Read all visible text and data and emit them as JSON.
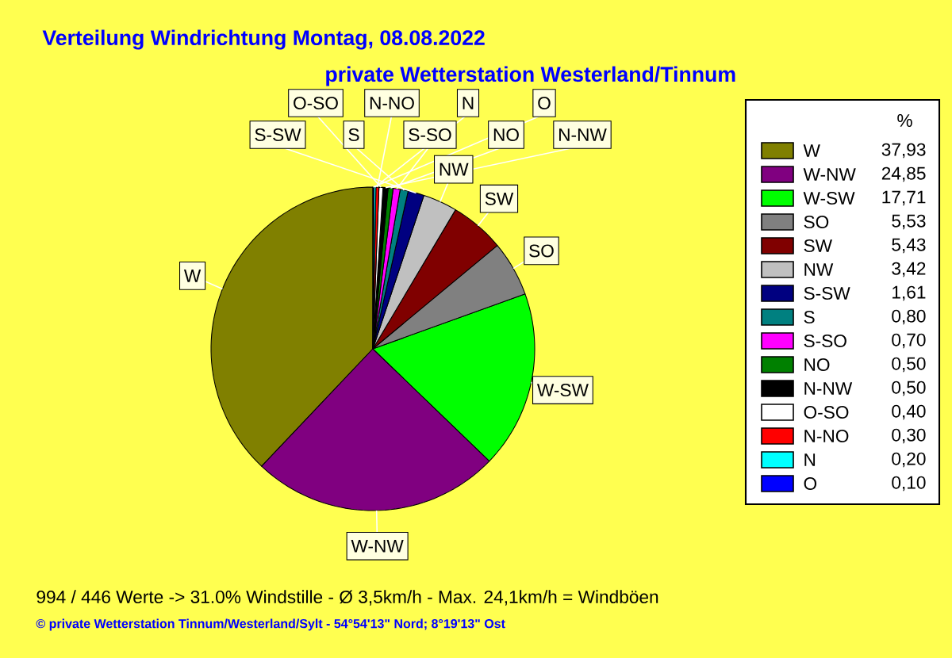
{
  "chart_data": {
    "type": "pie",
    "title": "Verteilung Windrichtung   Montag, 08.08.2022",
    "subtitle": "private Wetterstation Westerland/Tinnum",
    "categories": [
      "W",
      "W-NW",
      "W-SW",
      "SO",
      "SW",
      "NW",
      "S-SW",
      "S",
      "S-SO",
      "NO",
      "N-NW",
      "O-SO",
      "N-NO",
      "N",
      "O"
    ],
    "values": [
      37.93,
      24.85,
      17.71,
      5.53,
      5.43,
      3.42,
      1.61,
      0.8,
      0.7,
      0.5,
      0.5,
      0.4,
      0.3,
      0.2,
      0.1
    ],
    "value_labels": [
      "37,93",
      "24,85",
      "17,71",
      "5,53",
      "5,43",
      "3,42",
      "1,61",
      "0,80",
      "0,70",
      "0,50",
      "0,50",
      "0,40",
      "0,30",
      "0,20",
      "0,10"
    ],
    "colors": [
      "#808000",
      "#800080",
      "#00ff00",
      "#808080",
      "#800000",
      "#c0c0c0",
      "#000080",
      "#008080",
      "#ff00ff",
      "#008000",
      "#000000",
      "#ffffff",
      "#ff0000",
      "#00ffff",
      "#0000ff"
    ],
    "legend": "right",
    "legend_title": "%",
    "annotations": [
      "994 / 446 Werte  -> 31.0% Windstille   -   Ø 3,5km/h  -  Max. 24,1km/h = Windböen",
      "© private Wetterstation Tinnum/Westerland/Sylt  -  54°54'13\" Nord; 8°19'13\" Ost"
    ]
  }
}
